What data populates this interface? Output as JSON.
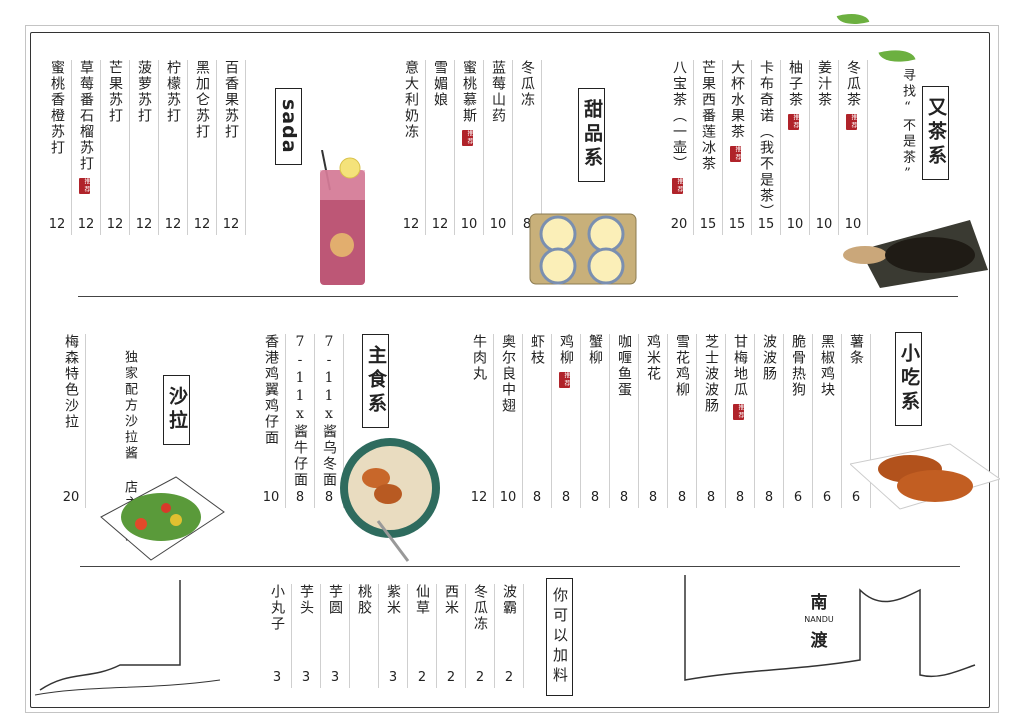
{
  "colors": {
    "accent": "#b0232a",
    "line": "#333333",
    "leaf": "#6cb040"
  },
  "badge_text": "推荐",
  "sections": {
    "soda": {
      "title": "sada",
      "items": [
        {
          "name": "蜜桃香橙苏打",
          "price": "12",
          "badge": false
        },
        {
          "name": "草莓番石榴苏打",
          "price": "12",
          "badge": true
        },
        {
          "name": "芒果苏打",
          "price": "12",
          "badge": false
        },
        {
          "name": "菠萝苏打",
          "price": "12",
          "badge": false
        },
        {
          "name": "柠檬苏打",
          "price": "12",
          "badge": false
        },
        {
          "name": "黑加仑苏打",
          "price": "12",
          "badge": false
        },
        {
          "name": "百香果苏打",
          "price": "12",
          "badge": false
        }
      ]
    },
    "dessert": {
      "title": "甜品系",
      "items": [
        {
          "name": "意大利奶冻",
          "price": "12",
          "badge": false
        },
        {
          "name": "雪媚娘",
          "price": "12",
          "badge": false
        },
        {
          "name": "蜜桃慕斯",
          "price": "10",
          "badge": true
        },
        {
          "name": "蓝莓山药",
          "price": "10",
          "badge": false
        },
        {
          "name": "冬瓜冻",
          "price": "8",
          "badge": false
        }
      ]
    },
    "tea": {
      "title": "又茶系",
      "subtitle": "寻找“不是茶”",
      "items": [
        {
          "name": "八宝茶（一壶）",
          "price": "20",
          "badge": true
        },
        {
          "name": "芒果西番莲冰茶",
          "price": "15",
          "badge": false
        },
        {
          "name": "大杯水果茶",
          "price": "15",
          "badge": true
        },
        {
          "name": "卡布奇诺（我不是茶）",
          "price": "15",
          "badge": false
        },
        {
          "name": "柚子茶",
          "price": "10",
          "badge": true
        },
        {
          "name": "姜汁茶",
          "price": "10",
          "badge": false
        },
        {
          "name": "冬瓜茶",
          "price": "10",
          "badge": true
        }
      ]
    },
    "salad": {
      "title": "沙拉",
      "subtitle": "独家配方沙拉酱 店主力推",
      "items": [
        {
          "name": "梅森特色沙拉",
          "price": "20",
          "badge": false
        }
      ]
    },
    "staple": {
      "title": "主食系",
      "items": [
        {
          "name": "香港鸡翼鸡仔面",
          "price": "10",
          "badge": false
        },
        {
          "name": "7-11x酱牛仔面",
          "price": "8",
          "badge": false
        },
        {
          "name": "7-11x酱乌冬面",
          "price": "8",
          "badge": false
        }
      ]
    },
    "snack": {
      "title": "小吃系",
      "items": [
        {
          "name": "牛肉丸",
          "price": "12",
          "badge": false
        },
        {
          "name": "奥尔良中翅",
          "price": "10",
          "badge": false
        },
        {
          "name": "虾枝",
          "price": "8",
          "badge": false
        },
        {
          "name": "鸡柳",
          "price": "8",
          "badge": true
        },
        {
          "name": "蟹柳",
          "price": "8",
          "badge": false
        },
        {
          "name": "咖喱鱼蛋",
          "price": "8",
          "badge": false
        },
        {
          "name": "鸡米花",
          "price": "8",
          "badge": false
        },
        {
          "name": "雪花鸡柳",
          "price": "8",
          "badge": false
        },
        {
          "name": "芝士波波肠",
          "price": "8",
          "badge": false
        },
        {
          "name": "甘梅地瓜",
          "price": "8",
          "badge": true
        },
        {
          "name": "波波肠",
          "price": "8",
          "badge": false
        },
        {
          "name": "脆骨热狗",
          "price": "6",
          "badge": false
        },
        {
          "name": "黑椒鸡块",
          "price": "6",
          "badge": false
        },
        {
          "name": "薯条",
          "price": "6",
          "badge": false
        }
      ]
    },
    "addons": {
      "title": "你可以加料",
      "items": [
        {
          "name": "小丸子",
          "price": "3"
        },
        {
          "name": "芋头",
          "price": "3"
        },
        {
          "name": "芋圆",
          "price": "3"
        },
        {
          "name": "桃胶",
          "price": ""
        },
        {
          "name": "紫米",
          "price": "3"
        },
        {
          "name": "仙草",
          "price": "2"
        },
        {
          "name": "西米",
          "price": "2"
        },
        {
          "name": "冬瓜冻",
          "price": "2"
        },
        {
          "name": "波霸",
          "price": "2"
        }
      ]
    }
  },
  "brand": {
    "cn_top": "南",
    "en": "NANDU",
    "cn_bottom": "渡"
  }
}
